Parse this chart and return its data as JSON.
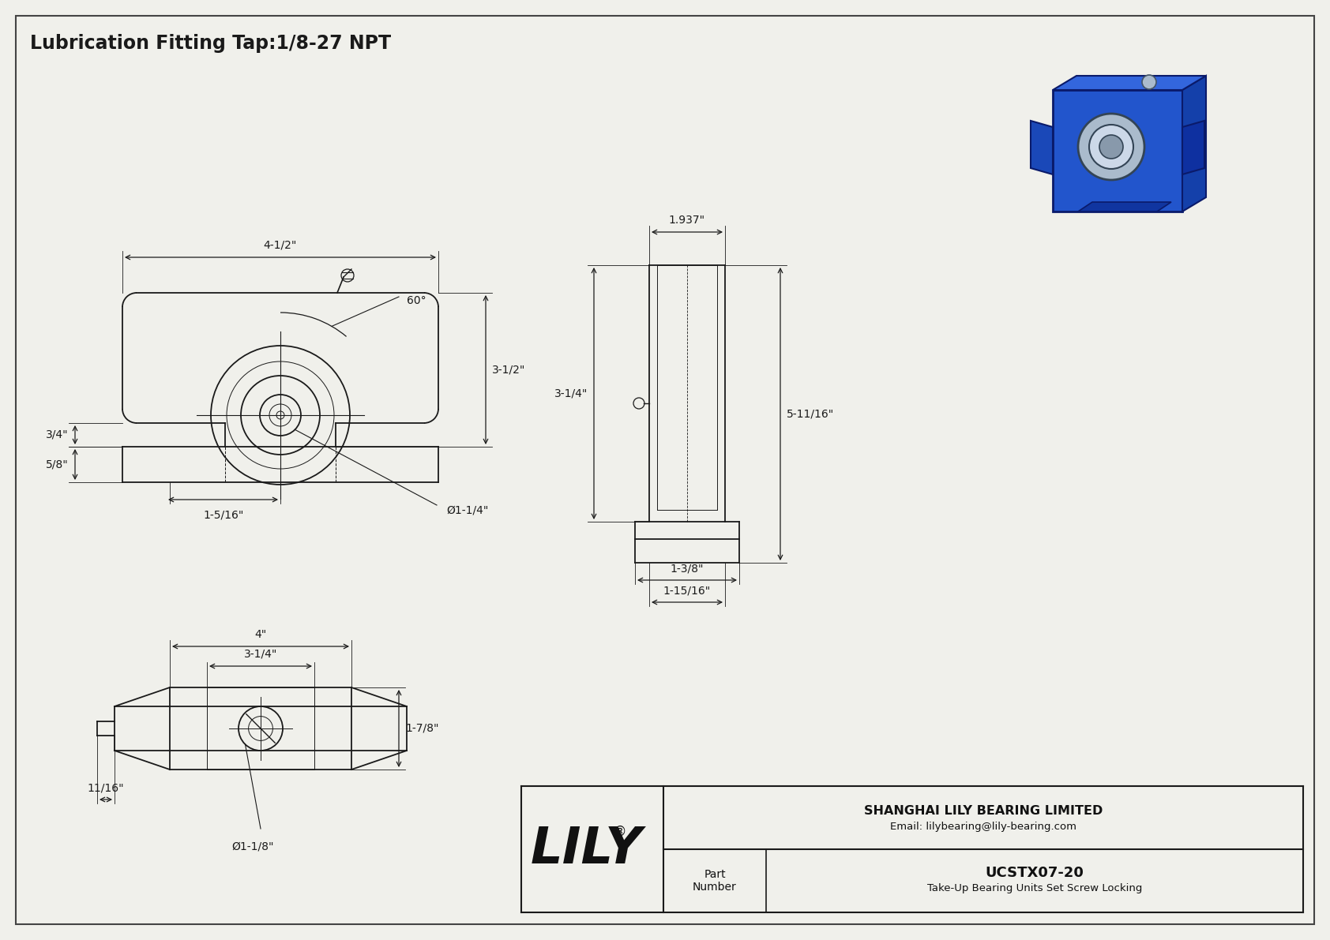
{
  "bg_color": "#f0f0eb",
  "line_color": "#1a1a1a",
  "dim_color": "#1a1a1a",
  "title": "Lubrication Fitting Tap:1/8-27 NPT",
  "title_fontsize": 17,
  "dim_fontsize": 10,
  "company": "SHANGHAI LILY BEARING LIMITED",
  "email": "Email: lilybearing@lily-bearing.com",
  "part_label": "Part\nNumber",
  "part_number": "UCSTX07-20",
  "part_desc": "Take-Up Bearing Units Set Screw Locking",
  "lily_text": "LILY",
  "dims_front": {
    "width_label": "4-1/2\"",
    "height_label": "3-1/2\"",
    "slot_width": "1-5/16\"",
    "bore_dia": "Ø1-1/4\"",
    "top_flange": "3/4\"",
    "bot_flange": "5/8\"",
    "angle": "60°"
  },
  "dims_side": {
    "width_label": "1.937\"",
    "height_label": "5-11/16\"",
    "slot_height": "3-1/4\"",
    "bot_width1": "1-3/8\"",
    "bot_width2": "1-15/16\""
  },
  "dims_bottom": {
    "outer_width": "4\"",
    "inner_width": "3-1/4\"",
    "slot_height": "1-7/8\"",
    "bore_dia": "Ø1-1/8\"",
    "flange": "11/16\""
  }
}
